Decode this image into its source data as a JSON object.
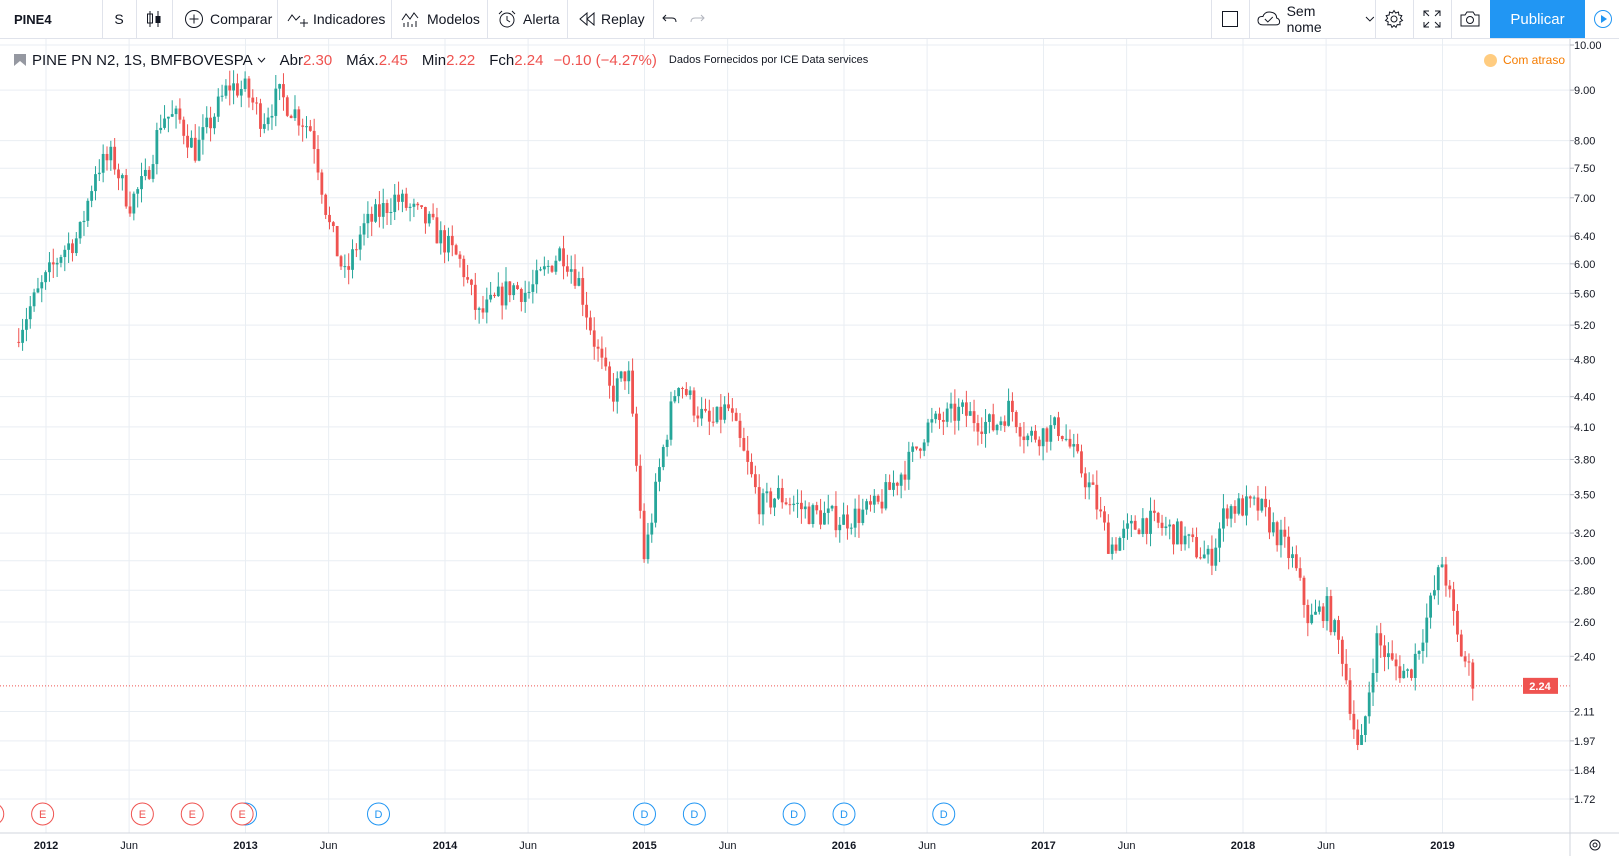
{
  "toolbar": {
    "symbol": "PINE4",
    "interval": "S",
    "compare": "Comparar",
    "indicators": "Indicadores",
    "templates": "Modelos",
    "alert": "Alerta",
    "replay": "Replay",
    "layout_name": "Sem nome",
    "publish": "Publicar"
  },
  "legend": {
    "title": "PINE PN N2, 1S, BMFBOVESPA",
    "open_label": "Abr",
    "open": "2.30",
    "high_label": "Máx.",
    "high": "2.45",
    "low_label": "Min",
    "low": "2.22",
    "close_label": "Fch",
    "close": "2.24",
    "change": "−0.10 (−4.27%)",
    "source": "Dados Fornecidos por ICE Data services",
    "delay": "Com atraso"
  },
  "colors": {
    "up": "#26a69a",
    "down": "#ef5350",
    "accent": "#2196f3",
    "grid": "#e9eef3",
    "price_line": "#ef5350"
  },
  "chart_data": {
    "type": "candlestick",
    "title": "PINE PN N2, 1S, BMFBOVESPA",
    "interval": "1S",
    "y_scale": "log",
    "ylim": [
      1.72,
      10.0
    ],
    "y_ticks": [
      "10.00",
      "9.00",
      "8.00",
      "7.50",
      "7.00",
      "6.40",
      "6.00",
      "5.60",
      "5.20",
      "4.80",
      "4.40",
      "4.10",
      "3.80",
      "3.50",
      "3.20",
      "3.00",
      "2.80",
      "2.60",
      "2.40",
      "2.24",
      "2.11",
      "1.97",
      "1.84",
      "1.72"
    ],
    "last_price": "2.24",
    "x_ticks": [
      "2012",
      "Jun",
      "2013",
      "Jun",
      "2014",
      "Jun",
      "2015",
      "Jun",
      "2016",
      "Jun",
      "2017",
      "Jun",
      "2018",
      "Jun",
      "2019"
    ],
    "close_path": [
      {
        "t": "2011-11",
        "c": 5.0
      },
      {
        "t": "2011-12",
        "c": 5.4
      },
      {
        "t": "2012-02",
        "c": 6.2
      },
      {
        "t": "2012-03",
        "c": 6.4
      },
      {
        "t": "2012-04",
        "c": 7.5
      },
      {
        "t": "2012-05",
        "c": 7.7
      },
      {
        "t": "2012-06",
        "c": 6.9
      },
      {
        "t": "2012-07",
        "c": 7.3
      },
      {
        "t": "2012-08",
        "c": 8.5
      },
      {
        "t": "2012-09",
        "c": 8.4
      },
      {
        "t": "2012-10",
        "c": 7.8
      },
      {
        "t": "2012-12",
        "c": 9.1
      },
      {
        "t": "2013-01",
        "c": 9.0
      },
      {
        "t": "2013-02",
        "c": 8.4
      },
      {
        "t": "2013-03",
        "c": 8.9
      },
      {
        "t": "2013-05",
        "c": 8.2
      },
      {
        "t": "2013-06",
        "c": 6.6
      },
      {
        "t": "2013-07",
        "c": 5.8
      },
      {
        "t": "2013-08",
        "c": 6.5
      },
      {
        "t": "2013-10",
        "c": 7.0
      },
      {
        "t": "2013-12",
        "c": 6.6
      },
      {
        "t": "2014-02",
        "c": 6.0
      },
      {
        "t": "2014-03",
        "c": 5.3
      },
      {
        "t": "2014-05",
        "c": 5.7
      },
      {
        "t": "2014-06",
        "c": 5.6
      },
      {
        "t": "2014-08",
        "c": 6.2
      },
      {
        "t": "2014-09",
        "c": 5.8
      },
      {
        "t": "2014-10",
        "c": 5.0
      },
      {
        "t": "2014-11",
        "c": 4.4
      },
      {
        "t": "2014-12",
        "c": 4.7
      },
      {
        "t": "2015-01",
        "c": 3.0
      },
      {
        "t": "2015-02",
        "c": 3.8
      },
      {
        "t": "2015-03",
        "c": 4.6
      },
      {
        "t": "2015-04",
        "c": 4.3
      },
      {
        "t": "2015-05",
        "c": 4.1
      },
      {
        "t": "2015-06",
        "c": 4.3
      },
      {
        "t": "2015-08",
        "c": 3.4
      },
      {
        "t": "2015-09",
        "c": 3.5
      },
      {
        "t": "2015-11",
        "c": 3.35
      },
      {
        "t": "2016-01",
        "c": 3.3
      },
      {
        "t": "2016-03",
        "c": 3.4
      },
      {
        "t": "2016-05",
        "c": 3.8
      },
      {
        "t": "2016-06",
        "c": 4.1
      },
      {
        "t": "2016-08",
        "c": 4.25
      },
      {
        "t": "2016-10",
        "c": 4.1
      },
      {
        "t": "2016-11",
        "c": 4.3
      },
      {
        "t": "2016-12",
        "c": 4.0
      },
      {
        "t": "2017-02",
        "c": 4.1
      },
      {
        "t": "2017-04",
        "c": 3.5
      },
      {
        "t": "2017-05",
        "c": 3.1
      },
      {
        "t": "2017-07",
        "c": 3.3
      },
      {
        "t": "2017-09",
        "c": 3.2
      },
      {
        "t": "2017-11",
        "c": 3.0
      },
      {
        "t": "2017-12",
        "c": 3.4
      },
      {
        "t": "2018-02",
        "c": 3.4
      },
      {
        "t": "2018-03",
        "c": 3.2
      },
      {
        "t": "2018-04",
        "c": 3.0
      },
      {
        "t": "2018-05",
        "c": 2.6
      },
      {
        "t": "2018-06",
        "c": 2.7
      },
      {
        "t": "2018-07",
        "c": 2.4
      },
      {
        "t": "2018-08",
        "c": 1.88
      },
      {
        "t": "2018-09",
        "c": 2.5
      },
      {
        "t": "2018-10",
        "c": 2.35
      },
      {
        "t": "2018-11",
        "c": 2.3
      },
      {
        "t": "2018-12",
        "c": 2.6
      },
      {
        "t": "2019-01",
        "c": 3.0
      },
      {
        "t": "2019-02",
        "c": 2.45
      },
      {
        "t": "2019-03",
        "c": 2.24
      }
    ],
    "events": [
      {
        "kind": "E",
        "t": "2011-11"
      },
      {
        "kind": "E",
        "t": "2012-02"
      },
      {
        "kind": "E",
        "t": "2012-08"
      },
      {
        "kind": "E",
        "t": "2012-11"
      },
      {
        "kind": "D",
        "t": "2013-01"
      },
      {
        "kind": "E",
        "t": "2013-02"
      },
      {
        "kind": "D",
        "t": "2013-09"
      },
      {
        "kind": "D",
        "t": "2015-01"
      },
      {
        "kind": "D",
        "t": "2015-04"
      },
      {
        "kind": "D",
        "t": "2015-10"
      },
      {
        "kind": "D",
        "t": "2016-01"
      },
      {
        "kind": "D",
        "t": "2016-07"
      }
    ]
  }
}
